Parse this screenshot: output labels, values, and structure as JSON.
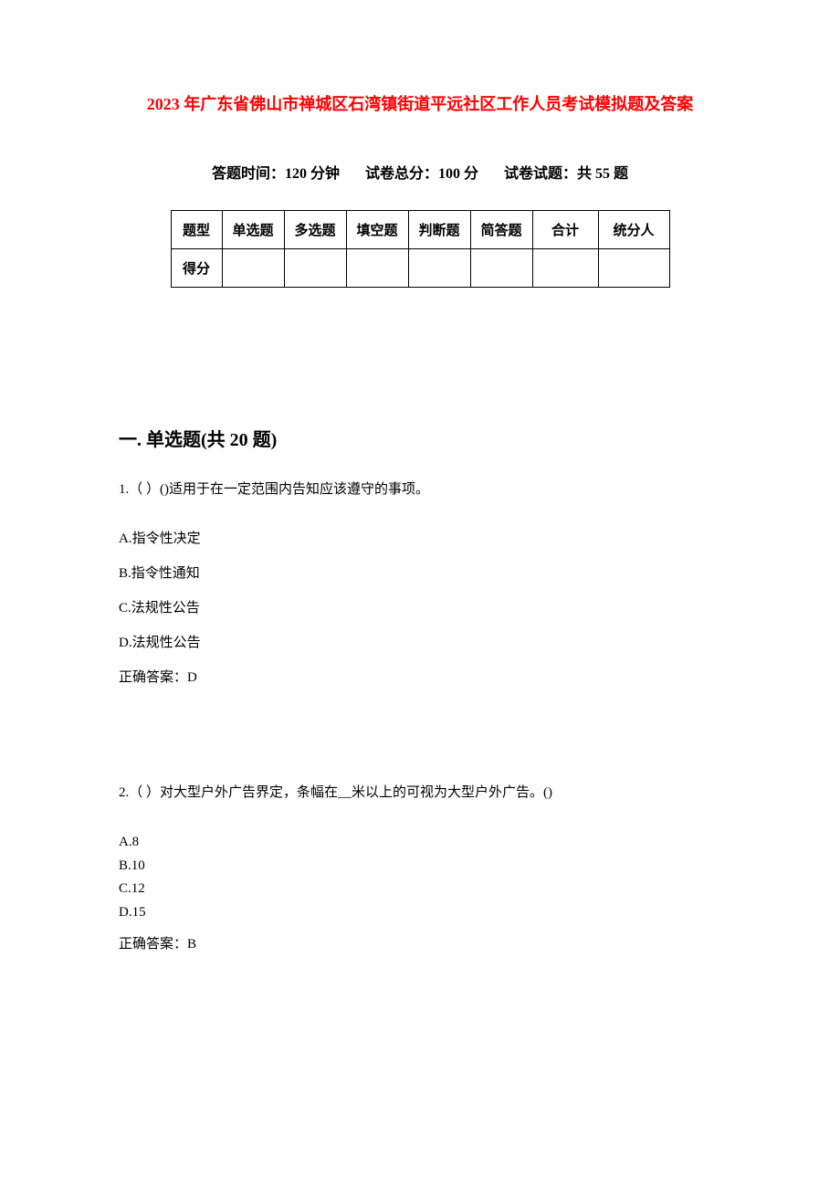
{
  "doc": {
    "title": "2023 年广东省佛山市禅城区石湾镇街道平远社区工作人员考试模拟题及答案",
    "title_color": "#ff0000",
    "meta": {
      "time_label": "答题时间：120 分钟",
      "total_score_label": "试卷总分：100 分",
      "question_count_label": "试卷试题：共 55 题"
    },
    "score_table": {
      "row1": [
        "题型",
        "单选题",
        "多选题",
        "填空题",
        "判断题",
        "简答题",
        "合计",
        "统分人"
      ],
      "row2_label": "得分"
    },
    "section1": {
      "heading": "一. 单选题(共 20 题)",
      "q1": {
        "text": "1.（ ）()适用于在一定范围内告知应该遵守的事项。",
        "optA": "A.指令性决定",
        "optB": "B.指令性通知",
        "optC": "C.法规性公告",
        "optD": "D.法规性公告",
        "answer": "正确答案：D"
      },
      "q2": {
        "text": "2.（ ）对大型户外广告界定，条幅在__米以上的可视为大型户外广告。()",
        "optA": "A.8",
        "optB": "B.10",
        "optC": "C.12",
        "optD": "D.15",
        "answer": "正确答案：B"
      }
    }
  }
}
